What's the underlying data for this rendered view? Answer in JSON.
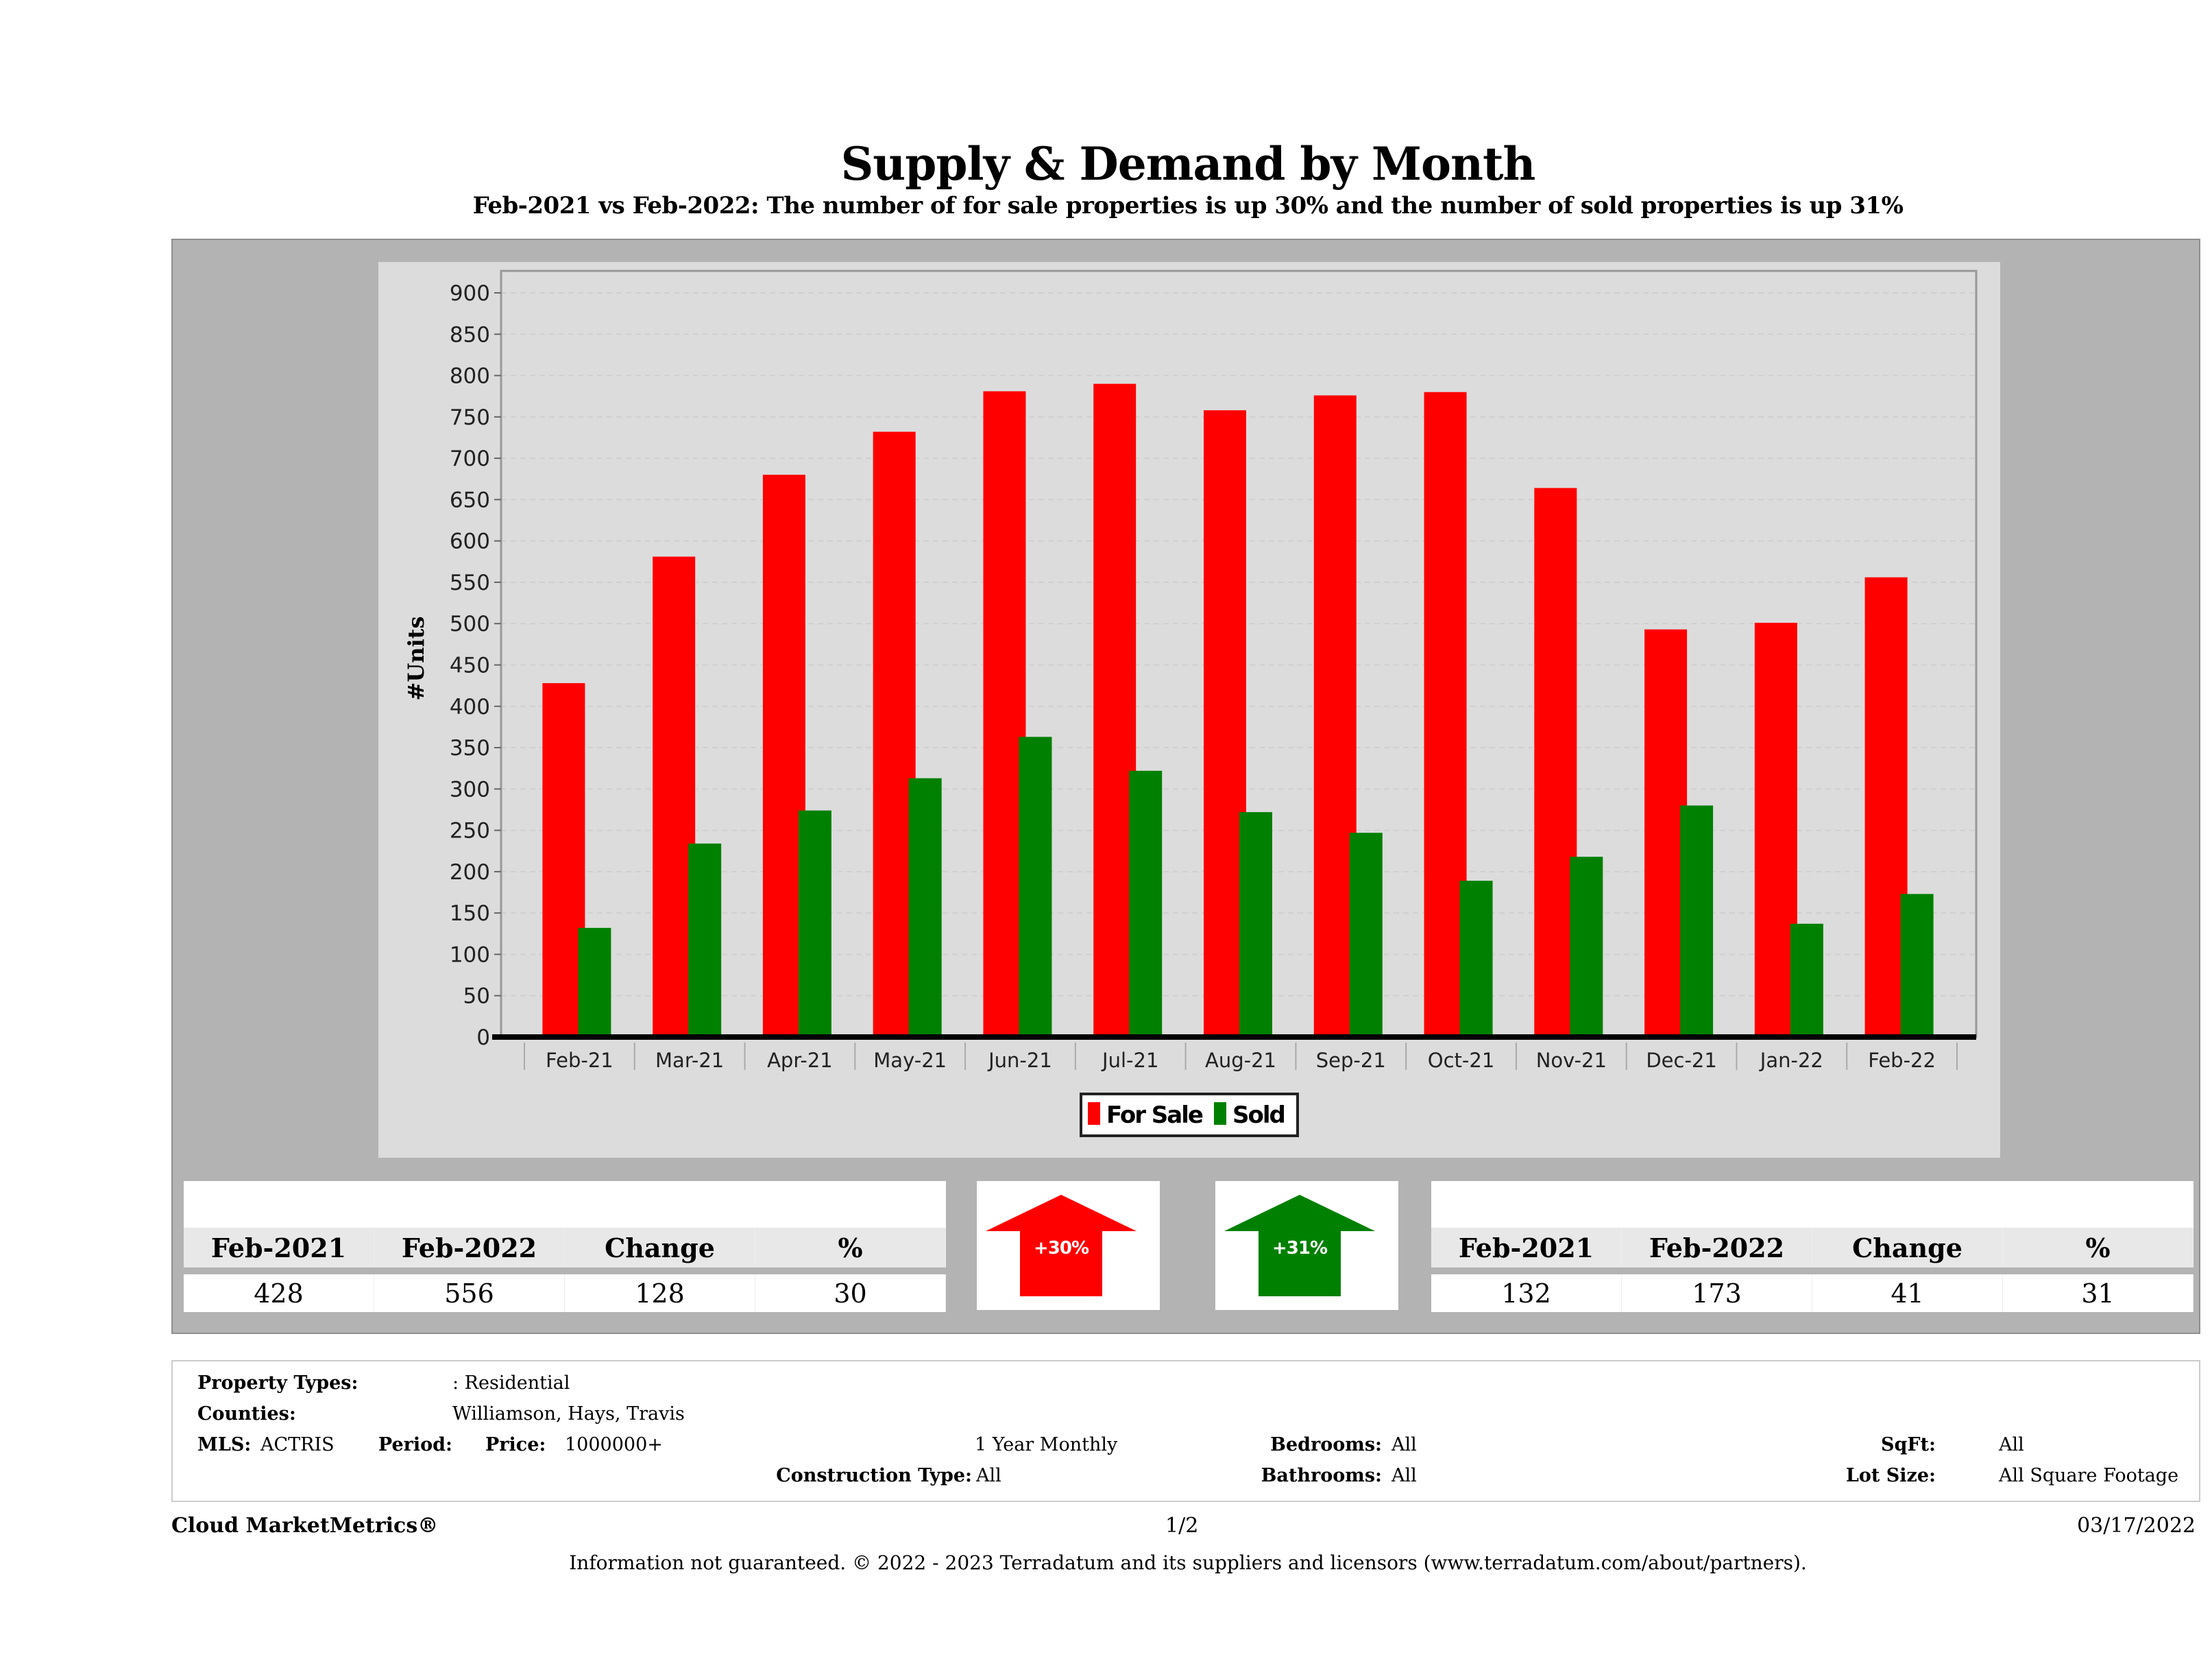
{
  "title": "Supply & Demand by Month",
  "subtitle": "Feb-2021 vs Feb-2022: The number of for sale properties is up 30% and the number of sold properties is up 31%",
  "colors": {
    "for_sale": "#ff0000",
    "sold": "#008000",
    "panel": "#b3b3b3",
    "chart_bg": "#dcdcdc"
  },
  "chart_data": {
    "type": "bar",
    "title": "",
    "xlabel": "",
    "ylabel": "#Units",
    "ylim": [
      0,
      900
    ],
    "yticks": [
      0,
      50,
      100,
      150,
      200,
      250,
      300,
      350,
      400,
      450,
      500,
      550,
      600,
      650,
      700,
      750,
      800,
      850,
      900
    ],
    "grid": true,
    "legend": "bottom-center",
    "categories": [
      "Feb-21",
      "Mar-21",
      "Apr-21",
      "May-21",
      "Jun-21",
      "Jul-21",
      "Aug-21",
      "Sep-21",
      "Oct-21",
      "Nov-21",
      "Dec-21",
      "Jan-22",
      "Feb-22"
    ],
    "series": [
      {
        "name": "For Sale",
        "color": "#ff0000",
        "values": [
          428,
          581,
          680,
          732,
          781,
          790,
          758,
          776,
          780,
          664,
          493,
          501,
          556
        ]
      },
      {
        "name": "Sold",
        "color": "#008000",
        "values": [
          132,
          234,
          274,
          313,
          363,
          322,
          272,
          247,
          189,
          218,
          280,
          137,
          173
        ]
      }
    ]
  },
  "for_sale_table": {
    "headers": [
      "Feb-2021",
      "Feb-2022",
      "Change",
      "%"
    ],
    "values": [
      "428",
      "556",
      "128",
      "30"
    ]
  },
  "sold_table": {
    "headers": [
      "Feb-2021",
      "Feb-2022",
      "Change",
      "%"
    ],
    "values": [
      "132",
      "173",
      "41",
      "31"
    ]
  },
  "for_sale_arrow": {
    "label": "+30%",
    "direction": "up",
    "icon": "arrow-up-icon"
  },
  "sold_arrow": {
    "label": "+31%",
    "direction": "up",
    "icon": "arrow-up-icon"
  },
  "filters": {
    "property_types_label": "Property Types:",
    "property_types_value": ": Residential",
    "counties_label": "Counties:",
    "counties_value": "Williamson, Hays, Travis",
    "mls_label": "MLS:",
    "mls_value": "ACTRIS",
    "price_label": "Price:",
    "price_value": "1000000+",
    "period_label": "Period:",
    "period_value": "1 Year Monthly",
    "construction_label": "Construction Type:",
    "construction_value": "All",
    "bedrooms_label": "Bedrooms:",
    "bedrooms_value": "All",
    "bathrooms_label": "Bathrooms:",
    "bathrooms_value": "All",
    "sqft_label": "SqFt:",
    "sqft_value": "All",
    "lot_size_label": "Lot Size:",
    "lot_size_value": "All Square Footage"
  },
  "footer": {
    "brand": "Cloud MarketMetrics®",
    "page": "1/2",
    "date": "03/17/2022",
    "disclaimer": "Information not guaranteed. © 2022 - 2023 Terradatum and its suppliers and licensors (www.terradatum.com/about/partners)."
  }
}
